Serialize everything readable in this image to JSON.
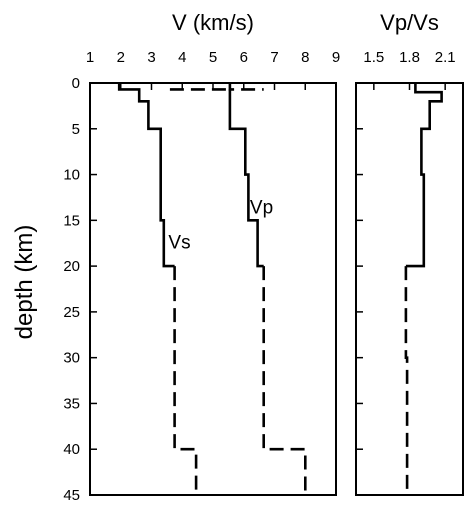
{
  "figure": {
    "ylabel": "depth (km)"
  },
  "chart_data": [
    {
      "type": "line",
      "title": "V (km/s)",
      "ylabel": "depth (km)",
      "xlim": [
        1,
        9
      ],
      "ylim": [
        45,
        0
      ],
      "x_ticks": [
        "1",
        "2",
        "3",
        "4",
        "5",
        "6",
        "7",
        "8",
        "9"
      ],
      "y_ticks": [
        "0",
        "5",
        "10",
        "15",
        "20",
        "25",
        "30",
        "35",
        "40",
        "45"
      ],
      "grid": false,
      "annotations": [
        "Vs",
        "Vp"
      ],
      "series": [
        {
          "name": "Vs",
          "solid": [
            [
              1.95,
              0
            ],
            [
              1.95,
              0.7
            ],
            [
              2.6,
              0.7
            ],
            [
              2.6,
              2.0
            ],
            [
              2.9,
              2.0
            ],
            [
              2.9,
              5.0
            ],
            [
              3.3,
              5.0
            ],
            [
              3.3,
              15.0
            ],
            [
              3.4,
              15.0
            ],
            [
              3.4,
              20.0
            ],
            [
              3.75,
              20.0
            ]
          ],
          "dashed": [
            [
              3.75,
              20.0
            ],
            [
              3.75,
              40.0
            ],
            [
              4.45,
              40.0
            ],
            [
              4.45,
              45.0
            ]
          ]
        },
        {
          "name": "Vp",
          "solid": [
            [
              5.55,
              0.7
            ],
            [
              5.55,
              5.0
            ],
            [
              6.05,
              5.0
            ],
            [
              6.05,
              10.0
            ],
            [
              6.15,
              10.0
            ],
            [
              6.15,
              15.0
            ],
            [
              6.45,
              15.0
            ],
            [
              6.45,
              20.0
            ],
            [
              6.65,
              20.0
            ]
          ],
          "dashed": [
            [
              3.6,
              0.7
            ],
            [
              5.55,
              0.7
            ],
            [
              5.55,
              0
            ],
            [
              5.55,
              0.7
            ],
            [
              6.65,
              0.7
            ]
          ],
          "dashed2": [
            [
              6.65,
              20.0
            ],
            [
              6.65,
              40.0
            ],
            [
              8.0,
              40.0
            ],
            [
              8.0,
              45.0
            ]
          ]
        }
      ]
    },
    {
      "type": "line",
      "title": "Vp/Vs",
      "xlim": [
        1.35,
        2.25
      ],
      "ylim": [
        45,
        0
      ],
      "x_ticks": [
        "1.5",
        "1.8",
        "2.1"
      ],
      "grid": false,
      "series": [
        {
          "name": "Vp/Vs",
          "solid": [
            [
              1.85,
              0
            ],
            [
              1.85,
              1.0
            ],
            [
              2.07,
              1.0
            ],
            [
              2.07,
              2.0
            ],
            [
              1.97,
              2.0
            ],
            [
              1.97,
              5.0
            ],
            [
              1.9,
              5.0
            ],
            [
              1.9,
              10.0
            ],
            [
              1.92,
              10.0
            ],
            [
              1.92,
              20.0
            ],
            [
              1.77,
              20.0
            ]
          ],
          "dashed": [
            [
              1.77,
              20.0
            ],
            [
              1.77,
              30.0
            ],
            [
              1.78,
              30.0
            ],
            [
              1.78,
              45.0
            ]
          ]
        }
      ]
    }
  ]
}
